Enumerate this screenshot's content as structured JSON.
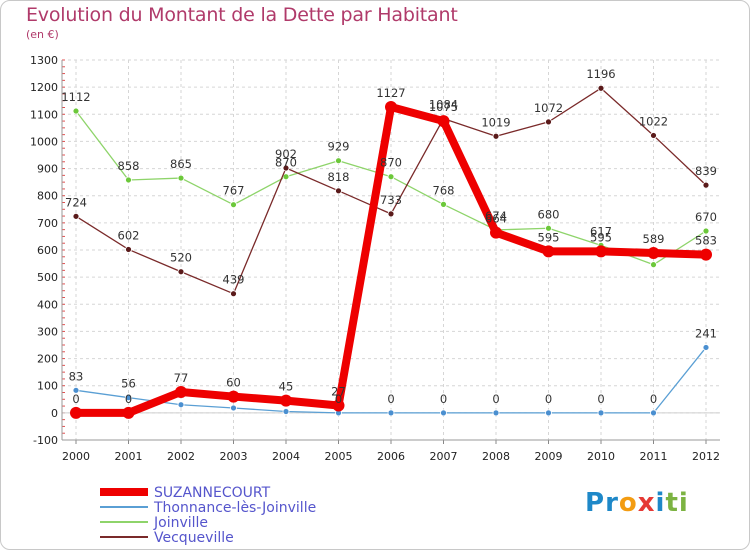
{
  "title": "Evolution du Montant de la Dette par Habitant",
  "subtitle": "(en €)",
  "logo": [
    "P",
    "r",
    "o",
    "x",
    "i",
    "t",
    "i"
  ],
  "logo_colors": [
    "#1e88c8",
    "#1e88c8",
    "#f39c12",
    "#e53935",
    "#1e88c8",
    "#7cb342",
    "#7cb342"
  ],
  "chart_data": {
    "type": "line",
    "title": "Evolution du Montant de la Dette par Habitant",
    "ylabel": "(en €)",
    "categories": [
      "2000",
      "2001",
      "2002",
      "2003",
      "2004",
      "2005",
      "2006",
      "2007",
      "2008",
      "2009",
      "2010",
      "2011",
      "2012"
    ],
    "ylim": [
      -100,
      1300
    ],
    "yticks": [
      -100,
      0,
      100,
      200,
      300,
      400,
      500,
      600,
      700,
      800,
      900,
      1000,
      1100,
      1200,
      1300
    ],
    "series": [
      {
        "name": "SUZANNECOURT",
        "color": "#ee0000",
        "width": 8,
        "values": [
          0,
          0,
          77,
          60,
          45,
          27,
          1127,
          1075,
          664,
          595,
          595,
          589,
          583
        ],
        "labels": [
          "0",
          "0",
          "77",
          "60",
          "45",
          "27",
          "1127",
          "1075",
          "664",
          "595",
          "595",
          "589",
          "583"
        ]
      },
      {
        "name": "Thonnance-lès-Joinville",
        "color": "#5a9fd4",
        "width": 1.3,
        "values": [
          83,
          56,
          30,
          18,
          5,
          0,
          0,
          0,
          0,
          0,
          0,
          0,
          241
        ],
        "labels": [
          "83",
          "56",
          "",
          "",
          "",
          "0",
          "0",
          "0",
          "0",
          "0",
          "0",
          "0",
          "241"
        ]
      },
      {
        "name": "Joinville",
        "color": "#8ed46a",
        "width": 1.3,
        "values": [
          1112,
          858,
          865,
          767,
          870,
          929,
          870,
          768,
          674,
          680,
          617,
          546,
          670
        ],
        "labels": [
          "1112",
          "858",
          "865",
          "767",
          "870",
          "929",
          "870",
          "768",
          "674",
          "680",
          "617",
          "",
          "670"
        ]
      },
      {
        "name": "Vecqueville",
        "color": "#7a2a2a",
        "width": 1.3,
        "values": [
          724,
          602,
          520,
          439,
          902,
          818,
          733,
          1084,
          1019,
          1072,
          1196,
          1022,
          839
        ],
        "labels": [
          "724",
          "602",
          "520",
          "439",
          "902",
          "818",
          "733",
          "1084",
          "1019",
          "1072",
          "1196",
          "1022",
          "839"
        ]
      }
    ]
  }
}
